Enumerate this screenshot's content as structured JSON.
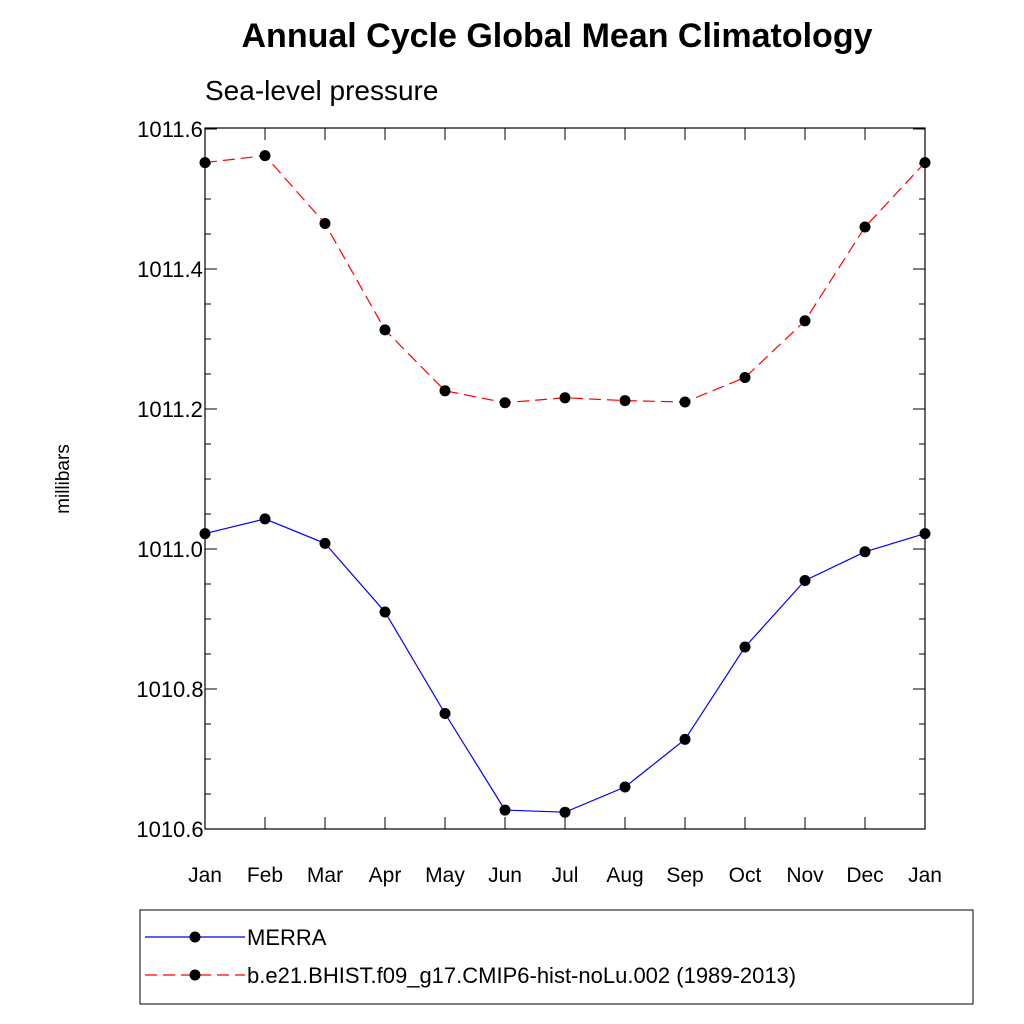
{
  "chart_data": {
    "type": "line",
    "title": "Annual Cycle Global Mean Climatology",
    "subtitle": "Sea-level pressure",
    "xlabel": "",
    "ylabel": "millibars",
    "categories": [
      "Jan",
      "Feb",
      "Mar",
      "Apr",
      "May",
      "Jun",
      "Jul",
      "Aug",
      "Sep",
      "Oct",
      "Nov",
      "Dec",
      "Jan"
    ],
    "ylim": [
      1010.6,
      1011.62
    ],
    "yticks": [
      1010.6,
      1010.8,
      1011.0,
      1011.2,
      1011.4,
      1011.6
    ],
    "ytick_labels": [
      "1010.6",
      "1010.8",
      "1011.0",
      "1011.2",
      "1011.4",
      "1011.6"
    ],
    "grid": false,
    "legend_position": "bottom",
    "series": [
      {
        "name": "MERRA",
        "color": "#0000ff",
        "dashed": false,
        "values": [
          1011.022,
          1011.043,
          1011.008,
          1010.91,
          1010.765,
          1010.627,
          1010.624,
          1010.66,
          1010.728,
          1010.86,
          1010.955,
          1010.996,
          1011.022
        ]
      },
      {
        "name": "b.e21.BHIST.f09_g17.CMIP6-hist-noLu.002 (1989-2013)",
        "color": "#ff0000",
        "dashed": true,
        "values": [
          1011.552,
          1011.562,
          1011.465,
          1011.313,
          1011.226,
          1011.209,
          1011.216,
          1011.212,
          1011.21,
          1011.245,
          1011.326,
          1011.46,
          1011.552
        ]
      }
    ]
  }
}
